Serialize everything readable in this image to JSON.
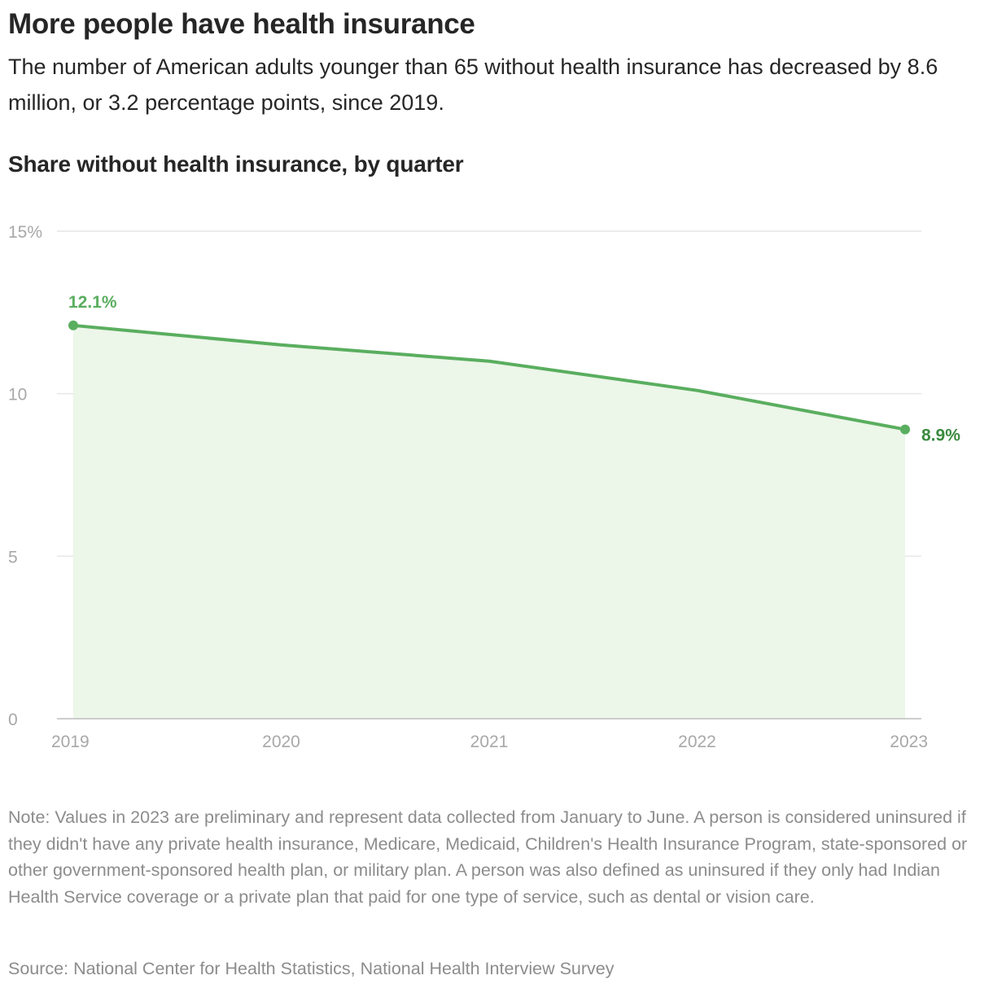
{
  "header": {
    "title": "More people have health insurance",
    "subtitle": "The number of American adults younger than 65 without health insurance has decreased by 8.6 million, or 3.2 percentage points, since 2019."
  },
  "chart_data": {
    "type": "area",
    "title": "Share without health insurance, by quarter",
    "x": [
      2019,
      2020,
      2021,
      2022,
      2023
    ],
    "values": [
      12.1,
      11.5,
      11.0,
      10.1,
      8.9
    ],
    "xlim": [
      2019,
      2023
    ],
    "ylim": [
      0,
      15
    ],
    "yticks": [
      0,
      5,
      10,
      15
    ],
    "ytick_labels": [
      "0",
      "5",
      "10",
      "15%"
    ],
    "xtick_labels": [
      "2019",
      "2020",
      "2021",
      "2022",
      "2023"
    ],
    "annotations": [
      {
        "x": 2019,
        "y": 12.1,
        "text": "12.1%"
      },
      {
        "x": 2023,
        "y": 8.9,
        "text": "8.9%"
      }
    ],
    "grid": true,
    "colors": {
      "line": "#5aae5f",
      "fill": "#ecf6e9",
      "end_label": "#3a8a3f",
      "start_label": "#5aae5f",
      "grid": "#e6e6e6"
    }
  },
  "footer": {
    "note": "Note: Values in 2023 are preliminary and represent data collected from January to June. A person is considered uninsured if they didn't have any private health insurance, Medicare, Medicaid, Children's Health Insurance Program, state-sponsored or other government-sponsored health plan, or military plan. A person was also defined as uninsured if they only had Indian Health Service coverage or a private plan that paid for one type of service, such as dental or vision care.",
    "source": "Source: National Center for Health Statistics, National Health Interview Survey"
  }
}
